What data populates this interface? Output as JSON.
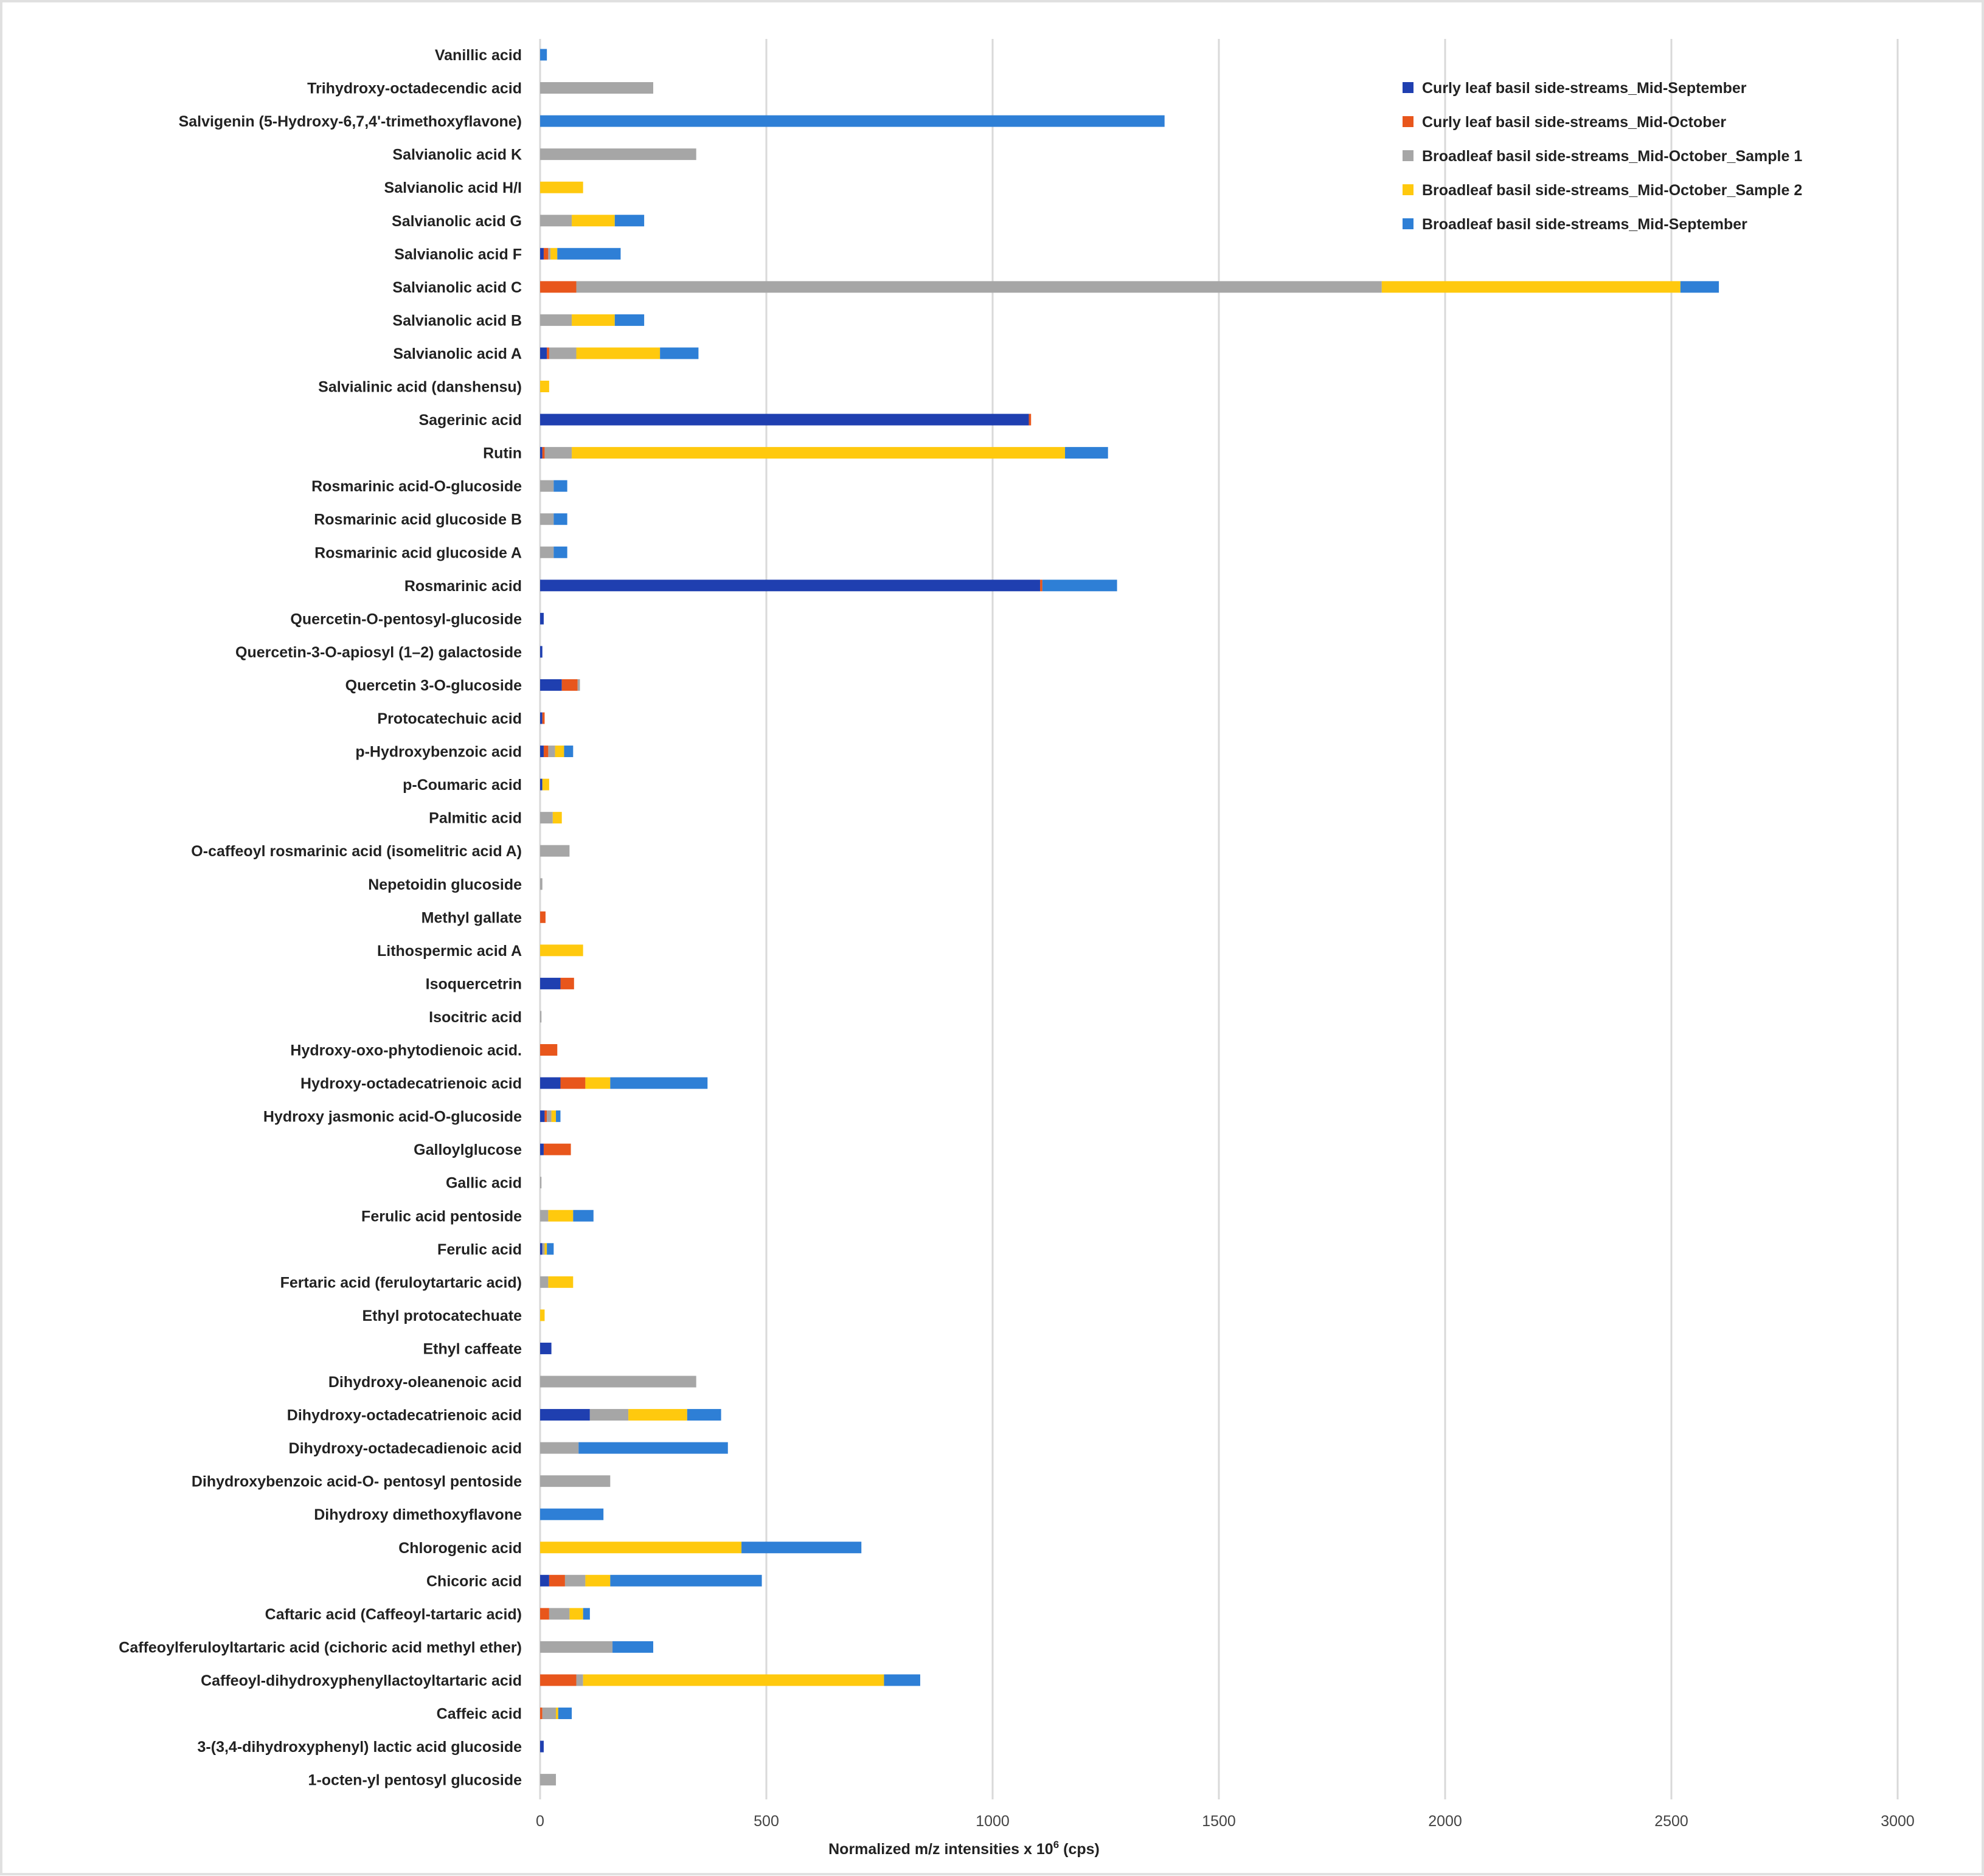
{
  "chart_data": {
    "type": "bar",
    "orientation": "horizontal",
    "stacked": true,
    "title": "",
    "xlabel": "Normalized m/z intensities x 10",
    "xlabel_sup": "6",
    "xlabel_suffix": " (cps)",
    "ylabel": "",
    "xlim": [
      0,
      3000
    ],
    "xticks": [
      0,
      500,
      1000,
      1500,
      2000,
      2500,
      3000
    ],
    "grid": "vertical",
    "legend_position": "top-right",
    "categories": [
      "Vanillic acid",
      "Trihydroxy-octadecendic acid",
      "Salvigenin (5-Hydroxy-6,7,4'-trimethoxyflavone)",
      "Salvianolic acid K",
      "Salvianolic acid H/I",
      "Salvianolic acid G",
      "Salvianolic acid F",
      "Salvianolic acid C",
      "Salvianolic acid B",
      "Salvianolic acid A",
      "Salvialinic acid (danshensu)",
      "Sagerinic acid",
      "Rutin",
      "Rosmarinic acid-O-glucoside",
      "Rosmarinic acid glucoside B",
      "Rosmarinic acid glucoside A",
      "Rosmarinic acid",
      "Quercetin-O-pentosyl-glucoside",
      "Quercetin-3-O-apiosyl (1–2) galactoside",
      "Quercetin 3-O-glucoside",
      "Protocatechuic acid",
      "p-Hydroxybenzoic acid",
      "p-Coumaric acid",
      "Palmitic acid",
      "O-caffeoyl rosmarinic acid (isomelitric acid A)",
      "Nepetoidin glucoside",
      "Methyl gallate",
      "Lithospermic acid A",
      "Isoquercetrin",
      "Isocitric acid",
      "Hydroxy-oxo-phytodienoic acid.",
      "Hydroxy-octadecatrienoic acid",
      "Hydroxy jasmonic acid-O-glucoside",
      "Galloylglucose",
      "Gallic acid",
      "Ferulic acid pentoside",
      "Ferulic acid",
      "Fertaric acid (feruloytartaric acid)",
      "Ethyl protocatechuate",
      "Ethyl caffeate",
      "Dihydroxy-oleanenoic acid",
      "Dihydroxy-octadecatrienoic acid",
      "Dihydroxy-octadecadienoic acid",
      "Dihydroxybenzoic acid-O- pentosyl pentoside",
      "Dihydroxy dimethoxyflavone",
      "Chlorogenic acid",
      "Chicoric acid",
      "Caftaric acid (Caffeoyl-tartaric acid)",
      "Caffeoylferuloyltartaric acid (cichoric acid methyl ether)",
      "Caffeoyl-dihydroxyphenyllactoyltartaric acid",
      "Caffeic acid",
      "3-(3,4-dihydroxyphenyl) lactic acid glucoside",
      "1-octen-yl pentosyl glucoside"
    ],
    "series": [
      {
        "name": "Curly leaf basil side-streams_Mid-September",
        "color": "#1f3fb0",
        "values": [
          0,
          0,
          0,
          0,
          0,
          0,
          8,
          0,
          0,
          15,
          0,
          1080,
          5,
          0,
          0,
          0,
          1105,
          8,
          5,
          48,
          5,
          8,
          5,
          0,
          0,
          0,
          0,
          0,
          45,
          0,
          0,
          45,
          10,
          8,
          0,
          0,
          5,
          0,
          0,
          25,
          0,
          110,
          0,
          0,
          0,
          0,
          20,
          0,
          0,
          0,
          0,
          8,
          0
        ]
      },
      {
        "name": "Curly leaf basil side-streams_Mid-October",
        "color": "#e8561c",
        "values": [
          0,
          0,
          0,
          0,
          0,
          0,
          10,
          80,
          0,
          5,
          0,
          5,
          5,
          0,
          0,
          0,
          5,
          0,
          0,
          35,
          5,
          10,
          0,
          0,
          0,
          0,
          12,
          0,
          30,
          0,
          38,
          55,
          5,
          60,
          0,
          0,
          0,
          0,
          0,
          0,
          0,
          0,
          0,
          0,
          0,
          0,
          35,
          20,
          0,
          80,
          5,
          0,
          0
        ]
      },
      {
        "name": "Broadleaf basil side-streams_Mid-October_Sample 1",
        "color": "#a6a6a6",
        "values": [
          0,
          250,
          0,
          345,
          0,
          70,
          5,
          1780,
          70,
          60,
          0,
          0,
          60,
          30,
          30,
          30,
          0,
          0,
          0,
          5,
          0,
          15,
          0,
          28,
          65,
          5,
          0,
          0,
          0,
          3,
          0,
          0,
          10,
          0,
          3,
          18,
          5,
          18,
          0,
          0,
          345,
          85,
          85,
          155,
          0,
          0,
          45,
          45,
          160,
          15,
          30,
          0,
          35
        ]
      },
      {
        "name": "Broadleaf basil side-streams_Mid-October_Sample 2",
        "color": "#ffc90e",
        "values": [
          0,
          0,
          0,
          0,
          95,
          95,
          15,
          660,
          95,
          185,
          20,
          0,
          1090,
          0,
          0,
          0,
          0,
          0,
          0,
          0,
          0,
          20,
          15,
          20,
          0,
          0,
          0,
          95,
          0,
          0,
          0,
          55,
          10,
          0,
          0,
          55,
          5,
          55,
          10,
          0,
          0,
          130,
          0,
          0,
          0,
          445,
          55,
          30,
          0,
          665,
          5,
          0,
          0
        ]
      },
      {
        "name": "Broadleaf basil side-streams_Mid-September",
        "color": "#2e7fd6",
        "values": [
          15,
          0,
          1380,
          0,
          0,
          65,
          140,
          85,
          65,
          85,
          0,
          0,
          95,
          30,
          30,
          30,
          165,
          0,
          0,
          0,
          0,
          20,
          0,
          0,
          0,
          0,
          0,
          0,
          0,
          0,
          0,
          215,
          10,
          0,
          0,
          45,
          15,
          0,
          0,
          0,
          0,
          75,
          330,
          0,
          140,
          265,
          335,
          15,
          90,
          80,
          30,
          0,
          0
        ]
      }
    ]
  }
}
